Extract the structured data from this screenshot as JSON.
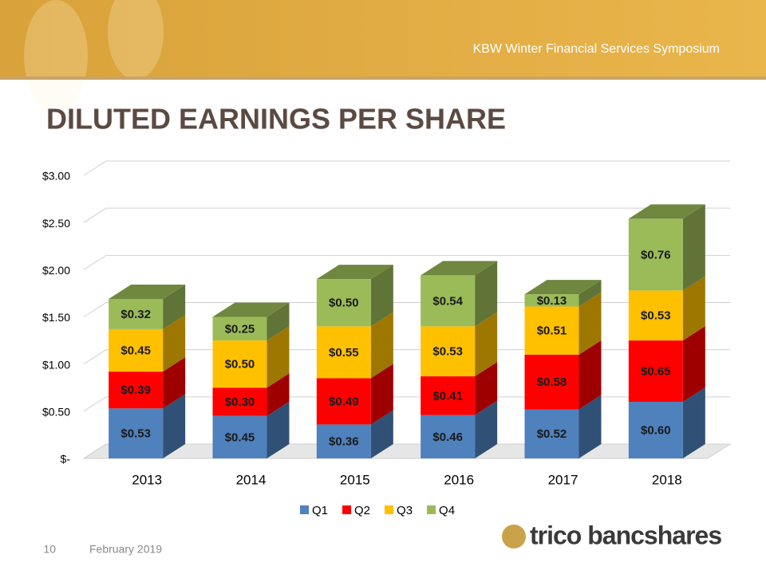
{
  "header": "KBW Winter Financial Services Symposium",
  "chart_data": {
    "type": "bar3d_stacked",
    "title": "DILUTED EARNINGS PER SHARE",
    "categories": [
      "2013",
      "2014",
      "2015",
      "2016",
      "2017",
      "2018"
    ],
    "series": [
      {
        "name": "Q1",
        "color": "#4f81bd",
        "values": [
          0.53,
          0.45,
          0.36,
          0.46,
          0.52,
          0.6
        ],
        "value_labels": [
          "$0.53",
          "$0.45",
          "$0.36",
          "$0.46",
          "$0.52",
          "$0.60"
        ]
      },
      {
        "name": "Q2",
        "color": "#ff0000",
        "values": [
          0.39,
          0.3,
          0.49,
          0.41,
          0.58,
          0.65
        ],
        "value_labels": [
          "$0.39",
          "$0.30",
          "$0.49",
          "$0.41",
          "$0.58",
          "$0.65"
        ]
      },
      {
        "name": "Q3",
        "color": "#ffc000",
        "values": [
          0.45,
          0.5,
          0.55,
          0.53,
          0.51,
          0.53
        ],
        "value_labels": [
          "$0.45",
          "$0.50",
          "$0.55",
          "$0.53",
          "$0.51",
          "$0.53"
        ]
      },
      {
        "name": "Q4",
        "color": "#9bbb59",
        "values": [
          0.32,
          0.25,
          0.5,
          0.54,
          0.13,
          0.76
        ],
        "value_labels": [
          "$0.32",
          "$0.25",
          "$0.50",
          "$0.54",
          "$0.13",
          "$0.76"
        ]
      }
    ],
    "ylim": [
      0,
      3
    ],
    "yticks": [
      {
        "value": 0,
        "label": "$-"
      },
      {
        "value": 0.5,
        "label": "$0.50"
      },
      {
        "value": 1,
        "label": "$1.00"
      },
      {
        "value": 1.5,
        "label": "$1.50"
      },
      {
        "value": 2,
        "label": "$2.00"
      },
      {
        "value": 2.5,
        "label": "$2.50"
      },
      {
        "value": 3,
        "label": "$3.00"
      }
    ],
    "grid": true,
    "legend": "bottom"
  },
  "footer": {
    "page": "10",
    "date": "February 2019",
    "logo": "trico bancshares"
  }
}
